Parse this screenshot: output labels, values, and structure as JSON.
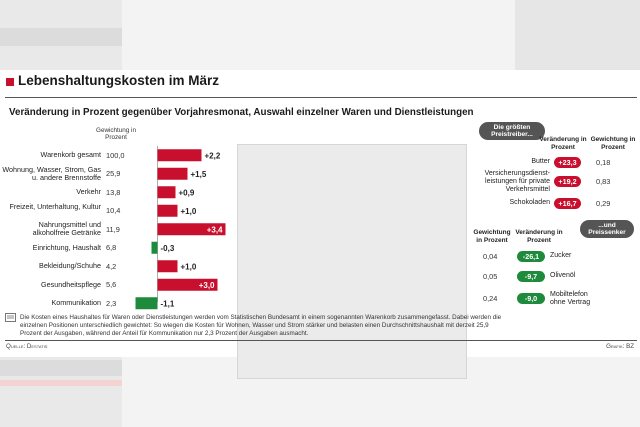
{
  "title": "Lebenshaltungskosten im März",
  "subtitle": "Veränderung in Prozent gegenüber Vorjahresmonat, Auswahl einzelner Waren und Dienstleistungen",
  "left_header": "Gewichtung in Prozent",
  "chart_data": {
    "type": "bar",
    "orientation": "horizontal",
    "categories": [
      "Warenkorb gesamt",
      "Wohnung, Wasser, Strom, Gas u. andere Brennstoffe",
      "Verkehr",
      "Freizeit, Unterhaltung, Kultur",
      "Nahrungsmittel und alkoholfreie Getränke",
      "Einrichtung, Haushalt",
      "Bekleidung/Schuhe",
      "Gesundheitspflege",
      "Kommunikation"
    ],
    "weights": [
      "100,0",
      "25,9",
      "13,8",
      "10,4",
      "11,9",
      "6,8",
      "4,2",
      "5,6",
      "2,3"
    ],
    "values": [
      2.2,
      1.5,
      0.9,
      1.0,
      3.4,
      -0.3,
      1.0,
      3.0,
      -1.1
    ],
    "labels": [
      "+2,2",
      "+1,5",
      "+0,9",
      "+1,0",
      "+3,4",
      "-0,3",
      "+1,0",
      "+3,0",
      "-1,1"
    ],
    "positive_color": "#c8102e",
    "negative_color": "#1e8a3c"
  },
  "drivers": {
    "badge": "Die größten Preistreiber...",
    "col_change": "Veränderung in Prozent",
    "col_weight": "Gewichtung in Prozent",
    "items": [
      {
        "name": "Butter",
        "change": "+23,3",
        "weight": "0,18"
      },
      {
        "name": "Versicherungsdienst-leistungen für private Verkehrsmittel",
        "change": "+19,2",
        "weight": "0,83"
      },
      {
        "name": "Schokoladen",
        "change": "+16,7",
        "weight": "0,29"
      }
    ]
  },
  "sinkers": {
    "badge": "...und Preissenker",
    "col_weight": "Gewichtung in Prozent",
    "col_change": "Veränderung in Prozent",
    "items": [
      {
        "name": "Zucker",
        "change": "-26,1",
        "weight": "0,04"
      },
      {
        "name": "Olivenöl",
        "change": "-9,7",
        "weight": "0,05"
      },
      {
        "name": "Mobiltelefon ohne Vertrag",
        "change": "-9,0",
        "weight": "0,24"
      }
    ]
  },
  "footnote": "Die Kosten eines Haushaltes für Waren oder Dienstleistungen werden vom Statistischen Bundesamt in einem sogenannten Warenkorb zusammengefasst. Dabei werden die einzelnen Positionen unterschiedlich gewichtet: So wiegen die Kosten für Wohnen, Wasser und Strom stärker und belasten einen Durchschnittshaushalt mit derzeit 25,9 Prozent der Ausgaben, während der Anteil für Kommunikation nur 2,3 Prozent der Ausgaben ausmacht.",
  "source": "Quelle: Destatis",
  "credit": "Grafik: BZ"
}
